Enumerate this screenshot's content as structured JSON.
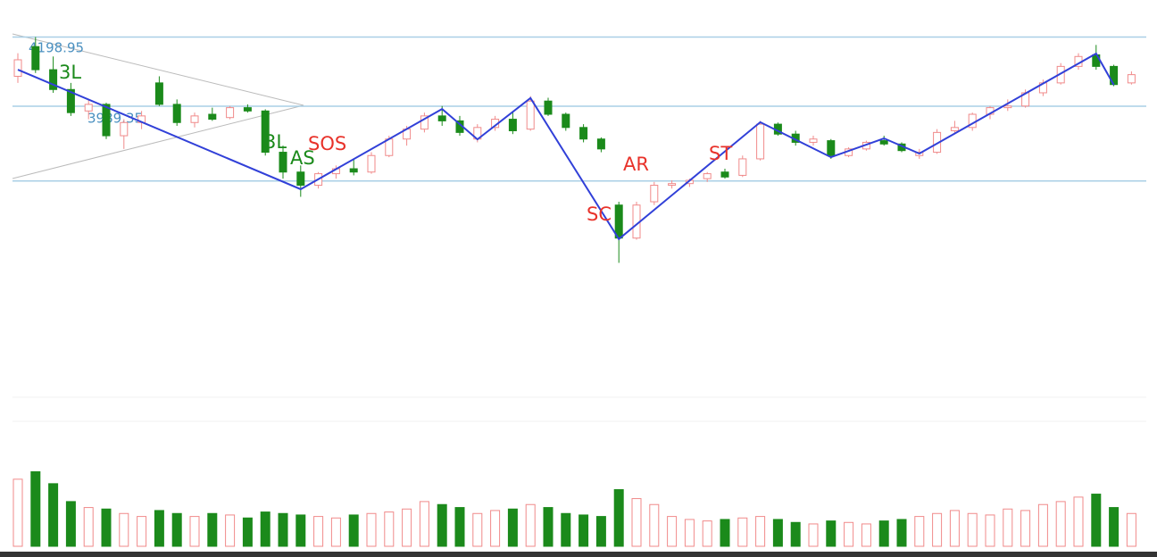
{
  "chart_data": {
    "type": "candlestick",
    "up_color": "#f08a8a",
    "down_color": "#1b8a1b",
    "ylim": [
      3500,
      4230
    ],
    "levels": [
      4198.95,
      3989.35,
      3763
    ],
    "level_color": "#a9cfe6",
    "level_label_color": "#4a90c0",
    "open": [
      4080,
      4170,
      4100,
      4040,
      3975,
      3995,
      3900,
      3940,
      4060,
      3995,
      3940,
      3965,
      3955,
      3985,
      3975,
      3850,
      3790,
      3750,
      3785,
      3800,
      3790,
      3840,
      3890,
      3920,
      3960,
      3945,
      3890,
      3925,
      3950,
      3920,
      4005,
      3965,
      3925,
      3890,
      3690,
      3590,
      3700,
      3750,
      3755,
      3770,
      3790,
      3780,
      3830,
      3935,
      3905,
      3880,
      3885,
      3840,
      3860,
      3885,
      3875,
      3840,
      3850,
      3915,
      3925,
      3965,
      3985,
      3990,
      4030,
      4060,
      4110,
      4145,
      4110,
      4060
    ],
    "high": [
      4150,
      4198.95,
      4140,
      4060,
      4010,
      4000,
      3950,
      3975,
      4080,
      4010,
      3970,
      3985,
      3990,
      3995,
      3980,
      3870,
      3810,
      3790,
      3810,
      3830,
      3850,
      3900,
      3930,
      3970,
      3990,
      3960,
      3935,
      3960,
      3975,
      4020,
      4015,
      3970,
      3935,
      3895,
      3700,
      3700,
      3760,
      3765,
      3770,
      3790,
      3800,
      3840,
      3945,
      3940,
      3915,
      3900,
      3890,
      3865,
      3885,
      3900,
      3880,
      3860,
      3920,
      3945,
      3970,
      3990,
      4010,
      4040,
      4070,
      4120,
      4150,
      4175,
      4115,
      4095
    ],
    "low": [
      4060,
      4090,
      4030,
      3960,
      3950,
      3890,
      3860,
      3920,
      3990,
      3930,
      3925,
      3945,
      3950,
      3970,
      3840,
      3770,
      3715,
      3740,
      3770,
      3780,
      3785,
      3835,
      3870,
      3910,
      3930,
      3900,
      3880,
      3915,
      3905,
      3915,
      3960,
      3915,
      3880,
      3850,
      3515,
      3585,
      3690,
      3740,
      3745,
      3760,
      3770,
      3775,
      3825,
      3900,
      3870,
      3870,
      3830,
      3835,
      3855,
      3870,
      3850,
      3830,
      3845,
      3905,
      3915,
      3950,
      3975,
      3985,
      4020,
      4055,
      4100,
      4100,
      4050,
      4055
    ],
    "close": [
      4130,
      4100,
      4040,
      3970,
      3995,
      3900,
      3940,
      3960,
      3995,
      3940,
      3960,
      3950,
      3985,
      3975,
      3850,
      3790,
      3750,
      3785,
      3800,
      3790,
      3840,
      3890,
      3920,
      3960,
      3945,
      3910,
      3925,
      3950,
      3915,
      4005,
      3965,
      3925,
      3890,
      3860,
      3590,
      3690,
      3750,
      3755,
      3765,
      3785,
      3775,
      3830,
      3935,
      3905,
      3880,
      3890,
      3840,
      3860,
      3880,
      3875,
      3855,
      3850,
      3910,
      3925,
      3965,
      3985,
      3990,
      4030,
      4060,
      4110,
      4140,
      4110,
      4055,
      4085
    ],
    "volume": [
      45,
      50,
      42,
      30,
      26,
      25,
      22,
      20,
      24,
      22,
      20,
      22,
      21,
      19,
      23,
      22,
      21,
      20,
      19,
      21,
      22,
      23,
      25,
      30,
      28,
      26,
      22,
      24,
      25,
      28,
      26,
      22,
      21,
      20,
      38,
      32,
      28,
      20,
      18,
      17,
      18,
      19,
      20,
      18,
      16,
      15,
      17,
      16,
      15,
      17,
      18,
      20,
      22,
      24,
      22,
      21,
      25,
      24,
      28,
      30,
      33,
      35,
      26,
      22
    ],
    "volume_lim": [
      0,
      100
    ],
    "zigzag": {
      "color": "#3140d8",
      "index": [
        0,
        16,
        24,
        26,
        29,
        34,
        42,
        46,
        49,
        51,
        61,
        62
      ],
      "values": [
        4100,
        3738,
        3981,
        3889,
        4014,
        3587,
        3941,
        3835,
        3892,
        3846,
        4149,
        4054
      ]
    },
    "annotations": [
      {
        "text": "3L",
        "color": "#1b8a1b"
      },
      {
        "text": "3L",
        "color": "#1b8a1b"
      },
      {
        "text": "AS",
        "color": "#1b8a1b"
      },
      {
        "text": "SOS",
        "color": "#e8322a"
      },
      {
        "text": "SC",
        "color": "#e8322a"
      },
      {
        "text": "AR",
        "color": "#e8322a"
      },
      {
        "text": "ST",
        "color": "#e8322a"
      }
    ]
  }
}
